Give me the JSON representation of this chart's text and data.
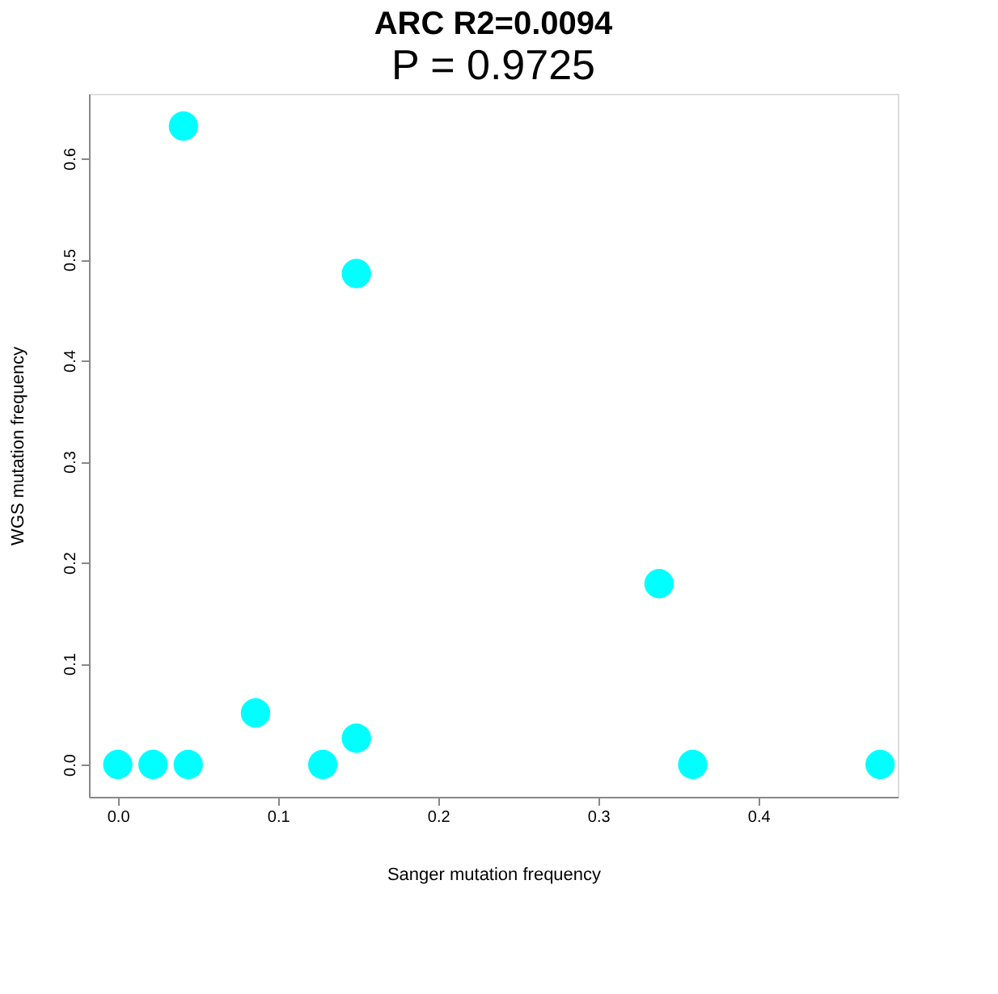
{
  "chart_data": {
    "type": "scatter",
    "title": "ARC R2=0.0094",
    "subtitle": "P = 0.9725",
    "xlabel": "Sanger mutation frequency",
    "ylabel": "WGS mutation frequency",
    "x": [
      0.0,
      0.022,
      0.044,
      0.041,
      0.086,
      0.128,
      0.149,
      0.149,
      0.338,
      0.359,
      0.476
    ],
    "series": [
      {
        "color": "#00ffff",
        "values": [
          0.0,
          0.0,
          0.0,
          0.632,
          0.051,
          0.0,
          0.026,
          0.486,
          0.179,
          0.0,
          0.0
        ]
      }
    ],
    "xlim": [
      -0.018,
      0.487
    ],
    "ylim": [
      -0.032,
      0.664
    ],
    "xticks": [
      {
        "value": 0,
        "label": "0.0"
      },
      0.1,
      0.2,
      0.3,
      0.4
    ],
    "yticks": [
      {
        "value": 0,
        "label": "0.0"
      },
      0.1,
      0.2,
      0.3,
      0.4,
      0.5,
      0.6
    ],
    "marker": "circle",
    "grid": false,
    "legend": false
  }
}
